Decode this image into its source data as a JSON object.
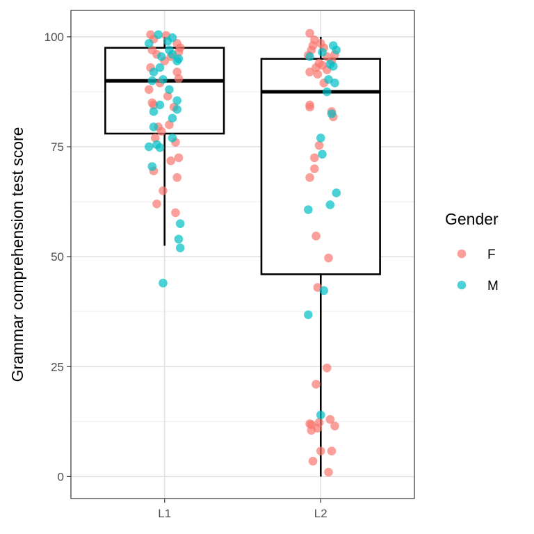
{
  "chart_data": {
    "type": "boxplot-jitter",
    "ylabel": "Grammar comprehension test score",
    "xlabel": "",
    "categories": [
      "L1",
      "L2"
    ],
    "ylim": [
      -5,
      106
    ],
    "yticks": [
      0,
      25,
      50,
      75,
      100
    ],
    "grid": true,
    "legend": {
      "title": "Gender",
      "placement": "right",
      "entries": [
        {
          "label": "F",
          "color": "#F8766D"
        },
        {
          "label": "M",
          "color": "#00BFC4"
        }
      ]
    },
    "boxes": [
      {
        "category": "L1",
        "min": 52.5,
        "q1": 78,
        "median": 90,
        "q3": 97.5,
        "max": 100
      },
      {
        "category": "L2",
        "min": 0,
        "q1": 46,
        "median": 87.5,
        "q3": 95,
        "max": 100
      }
    ],
    "points": [
      {
        "category": "L1",
        "gender": "F",
        "x_offset": -0.09,
        "y": 100.5
      },
      {
        "category": "L1",
        "gender": "F",
        "x_offset": -0.07,
        "y": 99.5
      },
      {
        "category": "L1",
        "gender": "F",
        "x_offset": 0.01,
        "y": 100.3
      },
      {
        "category": "L1",
        "gender": "F",
        "x_offset": 0.08,
        "y": 98.5
      },
      {
        "category": "L1",
        "gender": "F",
        "x_offset": 0.1,
        "y": 97.5
      },
      {
        "category": "L1",
        "gender": "F",
        "x_offset": 0.09,
        "y": 96.5
      },
      {
        "category": "L1",
        "gender": "F",
        "x_offset": -0.08,
        "y": 97.0
      },
      {
        "category": "L1",
        "gender": "F",
        "x_offset": -0.05,
        "y": 96.0
      },
      {
        "category": "L1",
        "gender": "F",
        "x_offset": 0.04,
        "y": 95.5
      },
      {
        "category": "L1",
        "gender": "F",
        "x_offset": 0.0,
        "y": 94.5
      },
      {
        "category": "L1",
        "gender": "F",
        "x_offset": -0.09,
        "y": 93.0
      },
      {
        "category": "L1",
        "gender": "F",
        "x_offset": 0.08,
        "y": 92.0
      },
      {
        "category": "L1",
        "gender": "F",
        "x_offset": 0.09,
        "y": 90.5
      },
      {
        "category": "L1",
        "gender": "F",
        "x_offset": -0.03,
        "y": 89.5
      },
      {
        "category": "L1",
        "gender": "F",
        "x_offset": -0.1,
        "y": 88.0
      },
      {
        "category": "L1",
        "gender": "F",
        "x_offset": 0.02,
        "y": 86.5
      },
      {
        "category": "L1",
        "gender": "F",
        "x_offset": -0.08,
        "y": 85.0
      },
      {
        "category": "L1",
        "gender": "F",
        "x_offset": 0.06,
        "y": 84.0
      },
      {
        "category": "L1",
        "gender": "F",
        "x_offset": -0.07,
        "y": 84.5
      },
      {
        "category": "L1",
        "gender": "F",
        "x_offset": 0.03,
        "y": 80.0
      },
      {
        "category": "L1",
        "gender": "F",
        "x_offset": -0.04,
        "y": 79.5
      },
      {
        "category": "L1",
        "gender": "F",
        "x_offset": -0.02,
        "y": 78.5
      },
      {
        "category": "L1",
        "gender": "F",
        "x_offset": -0.06,
        "y": 77.0
      },
      {
        "category": "L1",
        "gender": "F",
        "x_offset": 0.07,
        "y": 76.0
      },
      {
        "category": "L1",
        "gender": "F",
        "x_offset": 0.09,
        "y": 72.5
      },
      {
        "category": "L1",
        "gender": "F",
        "x_offset": 0.04,
        "y": 71.8
      },
      {
        "category": "L1",
        "gender": "F",
        "x_offset": -0.07,
        "y": 69.5
      },
      {
        "category": "L1",
        "gender": "F",
        "x_offset": 0.08,
        "y": 68.0
      },
      {
        "category": "L1",
        "gender": "F",
        "x_offset": -0.01,
        "y": 65.0
      },
      {
        "category": "L1",
        "gender": "F",
        "x_offset": -0.05,
        "y": 62.0
      },
      {
        "category": "L1",
        "gender": "F",
        "x_offset": 0.07,
        "y": 60.0
      },
      {
        "category": "L1",
        "gender": "M",
        "x_offset": -0.04,
        "y": 100.5
      },
      {
        "category": "L1",
        "gender": "M",
        "x_offset": 0.05,
        "y": 99.8
      },
      {
        "category": "L1",
        "gender": "M",
        "x_offset": 0.02,
        "y": 99.0
      },
      {
        "category": "L1",
        "gender": "M",
        "x_offset": -0.1,
        "y": 98.5
      },
      {
        "category": "L1",
        "gender": "M",
        "x_offset": 0.03,
        "y": 97.0
      },
      {
        "category": "L1",
        "gender": "M",
        "x_offset": 0.05,
        "y": 96.0
      },
      {
        "category": "L1",
        "gender": "M",
        "x_offset": -0.02,
        "y": 95.5
      },
      {
        "category": "L1",
        "gender": "M",
        "x_offset": 0.09,
        "y": 95.0
      },
      {
        "category": "L1",
        "gender": "M",
        "x_offset": 0.08,
        "y": 94.5
      },
      {
        "category": "L1",
        "gender": "M",
        "x_offset": -0.03,
        "y": 93.0
      },
      {
        "category": "L1",
        "gender": "M",
        "x_offset": -0.07,
        "y": 92.0
      },
      {
        "category": "L1",
        "gender": "M",
        "x_offset": -0.08,
        "y": 90.0
      },
      {
        "category": "L1",
        "gender": "M",
        "x_offset": -0.01,
        "y": 90.3
      },
      {
        "category": "L1",
        "gender": "M",
        "x_offset": 0.03,
        "y": 88.0
      },
      {
        "category": "L1",
        "gender": "M",
        "x_offset": 0.08,
        "y": 85.5
      },
      {
        "category": "L1",
        "gender": "M",
        "x_offset": -0.03,
        "y": 84.5
      },
      {
        "category": "L1",
        "gender": "M",
        "x_offset": 0.08,
        "y": 83.5
      },
      {
        "category": "L1",
        "gender": "M",
        "x_offset": -0.07,
        "y": 83.0
      },
      {
        "category": "L1",
        "gender": "M",
        "x_offset": 0.05,
        "y": 81.5
      },
      {
        "category": "L1",
        "gender": "M",
        "x_offset": -0.07,
        "y": 79.5
      },
      {
        "category": "L1",
        "gender": "M",
        "x_offset": 0.05,
        "y": 77.0
      },
      {
        "category": "L1",
        "gender": "M",
        "x_offset": -0.05,
        "y": 75.5
      },
      {
        "category": "L1",
        "gender": "M",
        "x_offset": -0.1,
        "y": 75.0
      },
      {
        "category": "L1",
        "gender": "M",
        "x_offset": -0.03,
        "y": 74.8
      },
      {
        "category": "L1",
        "gender": "M",
        "x_offset": -0.08,
        "y": 70.5
      },
      {
        "category": "L1",
        "gender": "M",
        "x_offset": 0.1,
        "y": 57.5
      },
      {
        "category": "L1",
        "gender": "M",
        "x_offset": 0.09,
        "y": 54.0
      },
      {
        "category": "L1",
        "gender": "M",
        "x_offset": 0.1,
        "y": 52.0
      },
      {
        "category": "L1",
        "gender": "M",
        "x_offset": -0.01,
        "y": 44.0
      },
      {
        "category": "L2",
        "gender": "F",
        "x_offset": -0.07,
        "y": 100.8
      },
      {
        "category": "L2",
        "gender": "F",
        "x_offset": -0.04,
        "y": 99.3
      },
      {
        "category": "L2",
        "gender": "F",
        "x_offset": 0.0,
        "y": 98.5
      },
      {
        "category": "L2",
        "gender": "F",
        "x_offset": -0.05,
        "y": 98.0
      },
      {
        "category": "L2",
        "gender": "F",
        "x_offset": 0.02,
        "y": 97.5
      },
      {
        "category": "L2",
        "gender": "F",
        "x_offset": -0.06,
        "y": 97.0
      },
      {
        "category": "L2",
        "gender": "F",
        "x_offset": 0.09,
        "y": 96.0
      },
      {
        "category": "L2",
        "gender": "F",
        "x_offset": 0.04,
        "y": 95.5
      },
      {
        "category": "L2",
        "gender": "F",
        "x_offset": -0.08,
        "y": 95.8
      },
      {
        "category": "L2",
        "gender": "F",
        "x_offset": 0.07,
        "y": 94.5
      },
      {
        "category": "L2",
        "gender": "F",
        "x_offset": -0.01,
        "y": 94.0
      },
      {
        "category": "L2",
        "gender": "F",
        "x_offset": 0.01,
        "y": 93.5
      },
      {
        "category": "L2",
        "gender": "F",
        "x_offset": -0.03,
        "y": 93.0
      },
      {
        "category": "L2",
        "gender": "F",
        "x_offset": 0.04,
        "y": 92.5
      },
      {
        "category": "L2",
        "gender": "F",
        "x_offset": -0.07,
        "y": 92.0
      },
      {
        "category": "L2",
        "gender": "F",
        "x_offset": -0.02,
        "y": 91.5
      },
      {
        "category": "L2",
        "gender": "F",
        "x_offset": 0.02,
        "y": 89.5
      },
      {
        "category": "L2",
        "gender": "F",
        "x_offset": -0.07,
        "y": 84.5
      },
      {
        "category": "L2",
        "gender": "F",
        "x_offset": -0.07,
        "y": 84.0
      },
      {
        "category": "L2",
        "gender": "F",
        "x_offset": 0.07,
        "y": 83.0
      },
      {
        "category": "L2",
        "gender": "F",
        "x_offset": 0.08,
        "y": 81.8
      },
      {
        "category": "L2",
        "gender": "F",
        "x_offset": -0.01,
        "y": 75.3
      },
      {
        "category": "L2",
        "gender": "F",
        "x_offset": -0.04,
        "y": 72.5
      },
      {
        "category": "L2",
        "gender": "F",
        "x_offset": -0.04,
        "y": 70.0
      },
      {
        "category": "L2",
        "gender": "F",
        "x_offset": -0.07,
        "y": 68.0
      },
      {
        "category": "L2",
        "gender": "F",
        "x_offset": -0.03,
        "y": 54.7
      },
      {
        "category": "L2",
        "gender": "F",
        "x_offset": 0.05,
        "y": 49.7
      },
      {
        "category": "L2",
        "gender": "F",
        "x_offset": -0.02,
        "y": 43.0
      },
      {
        "category": "L2",
        "gender": "F",
        "x_offset": 0.04,
        "y": 24.7
      },
      {
        "category": "L2",
        "gender": "F",
        "x_offset": -0.03,
        "y": 21.0
      },
      {
        "category": "L2",
        "gender": "F",
        "x_offset": 0.06,
        "y": 13.0
      },
      {
        "category": "L2",
        "gender": "F",
        "x_offset": -0.07,
        "y": 12.0
      },
      {
        "category": "L2",
        "gender": "F",
        "x_offset": -0.06,
        "y": 11.8
      },
      {
        "category": "L2",
        "gender": "F",
        "x_offset": -0.01,
        "y": 12.3
      },
      {
        "category": "L2",
        "gender": "F",
        "x_offset": 0.09,
        "y": 11.5
      },
      {
        "category": "L2",
        "gender": "F",
        "x_offset": -0.02,
        "y": 11.0
      },
      {
        "category": "L2",
        "gender": "F",
        "x_offset": -0.06,
        "y": 10.5
      },
      {
        "category": "L2",
        "gender": "F",
        "x_offset": 0.0,
        "y": 5.8
      },
      {
        "category": "L2",
        "gender": "F",
        "x_offset": 0.07,
        "y": 5.8
      },
      {
        "category": "L2",
        "gender": "F",
        "x_offset": -0.05,
        "y": 3.5
      },
      {
        "category": "L2",
        "gender": "F",
        "x_offset": 0.05,
        "y": 1.0
      },
      {
        "category": "L2",
        "gender": "M",
        "x_offset": 0.08,
        "y": 98.0
      },
      {
        "category": "L2",
        "gender": "M",
        "x_offset": 0.1,
        "y": 97.0
      },
      {
        "category": "L2",
        "gender": "M",
        "x_offset": 0.01,
        "y": 96.5
      },
      {
        "category": "L2",
        "gender": "M",
        "x_offset": -0.07,
        "y": 95.5
      },
      {
        "category": "L2",
        "gender": "M",
        "x_offset": 0.06,
        "y": 93.8
      },
      {
        "category": "L2",
        "gender": "M",
        "x_offset": 0.08,
        "y": 93.3
      },
      {
        "category": "L2",
        "gender": "M",
        "x_offset": 0.05,
        "y": 90.3
      },
      {
        "category": "L2",
        "gender": "M",
        "x_offset": 0.09,
        "y": 89.5
      },
      {
        "category": "L2",
        "gender": "M",
        "x_offset": 0.04,
        "y": 87.5
      },
      {
        "category": "L2",
        "gender": "M",
        "x_offset": 0.07,
        "y": 82.5
      },
      {
        "category": "L2",
        "gender": "M",
        "x_offset": 0.0,
        "y": 77.0
      },
      {
        "category": "L2",
        "gender": "M",
        "x_offset": 0.01,
        "y": 73.3
      },
      {
        "category": "L2",
        "gender": "M",
        "x_offset": 0.1,
        "y": 64.5
      },
      {
        "category": "L2",
        "gender": "M",
        "x_offset": 0.06,
        "y": 61.8
      },
      {
        "category": "L2",
        "gender": "M",
        "x_offset": -0.08,
        "y": 60.7
      },
      {
        "category": "L2",
        "gender": "M",
        "x_offset": 0.02,
        "y": 42.3
      },
      {
        "category": "L2",
        "gender": "M",
        "x_offset": -0.08,
        "y": 36.8
      },
      {
        "category": "L2",
        "gender": "M",
        "x_offset": 0.0,
        "y": 14.0
      }
    ]
  }
}
